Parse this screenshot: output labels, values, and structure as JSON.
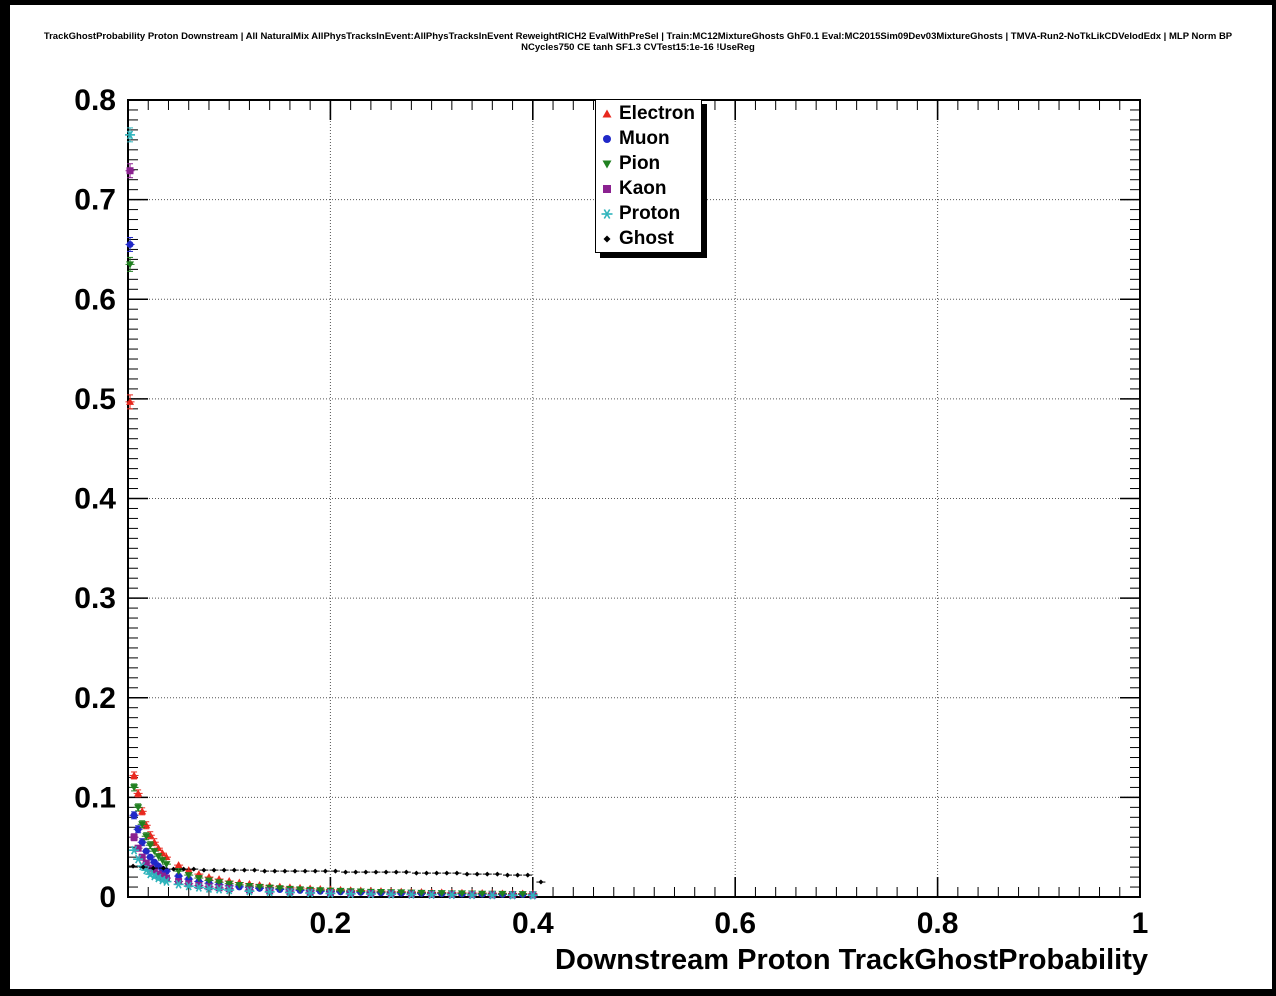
{
  "chart_data": {
    "type": "scatter",
    "title": "TrackGhostProbability Proton Downstream | All NaturalMix AllPhysTracksInEvent:AllPhysTracksInEvent ReweightRICH2 EvalWithPreSel | Train:MC12MixtureGhosts GhF0.1 Eval:MC2015Sim09Dev03MixtureGhosts | TMVA-Run2-NoTkLikCDVelodEdx | MLP Norm BP NCycles750 CE tanh SF1.3 CVTest15:1e-16 !UseReg",
    "xlabel": "Downstream Proton TrackGhostProbability",
    "ylabel": "",
    "xlim": [
      0,
      1
    ],
    "ylim": [
      0,
      0.8
    ],
    "xticks": [
      0.2,
      0.4,
      0.6,
      0.8,
      1
    ],
    "xtick_labels": [
      "0.2",
      "0.4",
      "0.6",
      "0.8",
      "1"
    ],
    "yticks": [
      0,
      0.1,
      0.2,
      0.3,
      0.4,
      0.5,
      0.6,
      0.7,
      0.8
    ],
    "ytick_labels": [
      "0",
      "0.1",
      "0.2",
      "0.3",
      "0.4",
      "0.5",
      "0.6",
      "0.7",
      "0.8"
    ],
    "grid": true,
    "legend_position": "top-center",
    "series": [
      {
        "name": "Electron",
        "marker": "triangle-up",
        "color": "#e8281e",
        "points": [
          [
            0.002,
            0.497
          ],
          [
            0.006,
            0.122
          ],
          [
            0.01,
            0.104
          ],
          [
            0.014,
            0.086
          ],
          [
            0.018,
            0.072
          ],
          [
            0.022,
            0.062
          ],
          [
            0.026,
            0.055
          ],
          [
            0.03,
            0.049
          ],
          [
            0.034,
            0.044
          ],
          [
            0.038,
            0.04
          ],
          [
            0.05,
            0.032
          ],
          [
            0.06,
            0.027
          ],
          [
            0.07,
            0.023
          ],
          [
            0.08,
            0.02
          ],
          [
            0.09,
            0.018
          ],
          [
            0.1,
            0.016
          ],
          [
            0.11,
            0.0145
          ],
          [
            0.12,
            0.0132
          ],
          [
            0.13,
            0.0121
          ],
          [
            0.14,
            0.0112
          ],
          [
            0.15,
            0.0104
          ],
          [
            0.16,
            0.0097
          ],
          [
            0.17,
            0.0091
          ],
          [
            0.18,
            0.0085
          ],
          [
            0.19,
            0.008
          ],
          [
            0.2,
            0.0076
          ],
          [
            0.21,
            0.0072
          ],
          [
            0.22,
            0.0068
          ],
          [
            0.23,
            0.0065
          ],
          [
            0.24,
            0.0062
          ],
          [
            0.25,
            0.0059
          ],
          [
            0.26,
            0.0056
          ],
          [
            0.27,
            0.0054
          ],
          [
            0.28,
            0.0052
          ],
          [
            0.29,
            0.005
          ],
          [
            0.3,
            0.0048
          ],
          [
            0.31,
            0.0046
          ],
          [
            0.32,
            0.0044
          ],
          [
            0.33,
            0.0043
          ],
          [
            0.34,
            0.0041
          ],
          [
            0.35,
            0.004
          ],
          [
            0.36,
            0.0039
          ],
          [
            0.37,
            0.0037
          ],
          [
            0.38,
            0.0036
          ],
          [
            0.39,
            0.0035
          ],
          [
            0.4,
            0.0034
          ]
        ]
      },
      {
        "name": "Muon",
        "marker": "circle",
        "color": "#2028c8",
        "points": [
          [
            0.002,
            0.655
          ],
          [
            0.006,
            0.082
          ],
          [
            0.01,
            0.068
          ],
          [
            0.014,
            0.055
          ],
          [
            0.018,
            0.046
          ],
          [
            0.022,
            0.04
          ],
          [
            0.026,
            0.035
          ],
          [
            0.03,
            0.031
          ],
          [
            0.034,
            0.028
          ],
          [
            0.038,
            0.026
          ],
          [
            0.05,
            0.021
          ],
          [
            0.06,
            0.018
          ],
          [
            0.07,
            0.0155
          ],
          [
            0.08,
            0.0138
          ],
          [
            0.09,
            0.0124
          ],
          [
            0.1,
            0.0112
          ],
          [
            0.11,
            0.0102
          ],
          [
            0.12,
            0.0094
          ],
          [
            0.13,
            0.0087
          ],
          [
            0.14,
            0.0081
          ],
          [
            0.15,
            0.0075
          ],
          [
            0.16,
            0.007
          ],
          [
            0.17,
            0.0066
          ],
          [
            0.18,
            0.0062
          ],
          [
            0.19,
            0.0058
          ],
          [
            0.2,
            0.0055
          ],
          [
            0.21,
            0.0052
          ],
          [
            0.22,
            0.0049
          ],
          [
            0.23,
            0.0047
          ],
          [
            0.24,
            0.0045
          ],
          [
            0.25,
            0.0043
          ],
          [
            0.26,
            0.0041
          ],
          [
            0.27,
            0.0039
          ],
          [
            0.28,
            0.0037
          ],
          [
            0.29,
            0.0036
          ],
          [
            0.3,
            0.0034
          ],
          [
            0.31,
            0.0033
          ],
          [
            0.32,
            0.0032
          ],
          [
            0.33,
            0.003
          ],
          [
            0.34,
            0.0029
          ],
          [
            0.35,
            0.0028
          ],
          [
            0.36,
            0.0027
          ],
          [
            0.37,
            0.0026
          ],
          [
            0.38,
            0.0026
          ],
          [
            0.39,
            0.0025
          ],
          [
            0.4,
            0.0024
          ]
        ]
      },
      {
        "name": "Pion",
        "marker": "triangle-down",
        "color": "#208020",
        "points": [
          [
            0.002,
            0.635
          ],
          [
            0.006,
            0.11
          ],
          [
            0.01,
            0.09
          ],
          [
            0.014,
            0.073
          ],
          [
            0.018,
            0.061
          ],
          [
            0.022,
            0.052
          ],
          [
            0.026,
            0.046
          ],
          [
            0.03,
            0.041
          ],
          [
            0.034,
            0.037
          ],
          [
            0.038,
            0.033
          ],
          [
            0.05,
            0.026
          ],
          [
            0.06,
            0.022
          ],
          [
            0.07,
            0.019
          ],
          [
            0.08,
            0.0165
          ],
          [
            0.09,
            0.0148
          ],
          [
            0.1,
            0.0133
          ],
          [
            0.11,
            0.0121
          ],
          [
            0.12,
            0.0111
          ],
          [
            0.13,
            0.0102
          ],
          [
            0.14,
            0.0094
          ],
          [
            0.15,
            0.0088
          ],
          [
            0.16,
            0.0082
          ],
          [
            0.17,
            0.0077
          ],
          [
            0.18,
            0.0072
          ],
          [
            0.19,
            0.0068
          ],
          [
            0.2,
            0.0064
          ],
          [
            0.21,
            0.0061
          ],
          [
            0.22,
            0.0058
          ],
          [
            0.23,
            0.0055
          ],
          [
            0.24,
            0.0052
          ],
          [
            0.25,
            0.005
          ],
          [
            0.26,
            0.0048
          ],
          [
            0.27,
            0.0046
          ],
          [
            0.28,
            0.0044
          ],
          [
            0.29,
            0.0042
          ],
          [
            0.3,
            0.004
          ],
          [
            0.31,
            0.0039
          ],
          [
            0.32,
            0.0037
          ],
          [
            0.33,
            0.0036
          ],
          [
            0.34,
            0.0035
          ],
          [
            0.35,
            0.0033
          ],
          [
            0.36,
            0.0032
          ],
          [
            0.37,
            0.0031
          ],
          [
            0.38,
            0.003
          ],
          [
            0.39,
            0.0029
          ],
          [
            0.4,
            0.0028
          ]
        ]
      },
      {
        "name": "Kaon",
        "marker": "square",
        "color": "#8b2190",
        "points": [
          [
            0.002,
            0.729
          ],
          [
            0.006,
            0.06
          ],
          [
            0.01,
            0.049
          ],
          [
            0.014,
            0.04
          ],
          [
            0.018,
            0.034
          ],
          [
            0.022,
            0.029
          ],
          [
            0.026,
            0.026
          ],
          [
            0.03,
            0.023
          ],
          [
            0.034,
            0.021
          ],
          [
            0.038,
            0.019
          ],
          [
            0.05,
            0.0155
          ],
          [
            0.06,
            0.0133
          ],
          [
            0.07,
            0.0116
          ],
          [
            0.08,
            0.0103
          ],
          [
            0.09,
            0.0093
          ],
          [
            0.1,
            0.0084
          ],
          [
            0.12,
            0.0071
          ],
          [
            0.14,
            0.0061
          ],
          [
            0.16,
            0.0053
          ],
          [
            0.18,
            0.0047
          ],
          [
            0.2,
            0.0042
          ],
          [
            0.22,
            0.0038
          ],
          [
            0.24,
            0.0035
          ],
          [
            0.26,
            0.0032
          ],
          [
            0.28,
            0.0029
          ],
          [
            0.3,
            0.0027
          ],
          [
            0.32,
            0.0025
          ],
          [
            0.34,
            0.0024
          ],
          [
            0.36,
            0.0022
          ],
          [
            0.38,
            0.0021
          ],
          [
            0.4,
            0.002
          ]
        ]
      },
      {
        "name": "Proton",
        "marker": "star",
        "color": "#30b4bc",
        "points": [
          [
            0.002,
            0.765
          ],
          [
            0.006,
            0.047
          ],
          [
            0.01,
            0.038
          ],
          [
            0.014,
            0.031
          ],
          [
            0.018,
            0.027
          ],
          [
            0.022,
            0.023
          ],
          [
            0.026,
            0.021
          ],
          [
            0.03,
            0.019
          ],
          [
            0.034,
            0.017
          ],
          [
            0.038,
            0.0155
          ],
          [
            0.05,
            0.0127
          ],
          [
            0.06,
            0.0109
          ],
          [
            0.07,
            0.0096
          ],
          [
            0.08,
            0.0085
          ],
          [
            0.09,
            0.0077
          ],
          [
            0.1,
            0.007
          ],
          [
            0.12,
            0.0059
          ],
          [
            0.14,
            0.0051
          ],
          [
            0.16,
            0.0045
          ],
          [
            0.18,
            0.004
          ],
          [
            0.2,
            0.0036
          ],
          [
            0.22,
            0.0032
          ],
          [
            0.24,
            0.003
          ],
          [
            0.26,
            0.0027
          ],
          [
            0.28,
            0.0025
          ],
          [
            0.3,
            0.0023
          ],
          [
            0.32,
            0.0022
          ],
          [
            0.34,
            0.002
          ],
          [
            0.36,
            0.0019
          ],
          [
            0.38,
            0.0018
          ],
          [
            0.4,
            0.0017
          ]
        ]
      },
      {
        "name": "Ghost",
        "marker": "diamond",
        "color": "#000000",
        "points": [
          [
            0.005,
            0.031
          ],
          [
            0.015,
            0.03
          ],
          [
            0.025,
            0.029
          ],
          [
            0.035,
            0.029
          ],
          [
            0.045,
            0.028
          ],
          [
            0.055,
            0.028
          ],
          [
            0.065,
            0.028
          ],
          [
            0.075,
            0.027
          ],
          [
            0.085,
            0.027
          ],
          [
            0.095,
            0.027
          ],
          [
            0.105,
            0.027
          ],
          [
            0.115,
            0.027
          ],
          [
            0.125,
            0.027
          ],
          [
            0.135,
            0.026
          ],
          [
            0.145,
            0.026
          ],
          [
            0.155,
            0.026
          ],
          [
            0.165,
            0.026
          ],
          [
            0.175,
            0.026
          ],
          [
            0.185,
            0.026
          ],
          [
            0.195,
            0.026
          ],
          [
            0.205,
            0.026
          ],
          [
            0.215,
            0.025
          ],
          [
            0.225,
            0.025
          ],
          [
            0.235,
            0.025
          ],
          [
            0.245,
            0.025
          ],
          [
            0.255,
            0.025
          ],
          [
            0.265,
            0.025
          ],
          [
            0.275,
            0.025
          ],
          [
            0.285,
            0.024
          ],
          [
            0.295,
            0.024
          ],
          [
            0.305,
            0.024
          ],
          [
            0.315,
            0.024
          ],
          [
            0.325,
            0.024
          ],
          [
            0.335,
            0.023
          ],
          [
            0.345,
            0.023
          ],
          [
            0.355,
            0.023
          ],
          [
            0.365,
            0.023
          ],
          [
            0.375,
            0.022
          ],
          [
            0.385,
            0.022
          ],
          [
            0.395,
            0.022
          ],
          [
            0.408,
            0.015
          ]
        ]
      }
    ]
  }
}
